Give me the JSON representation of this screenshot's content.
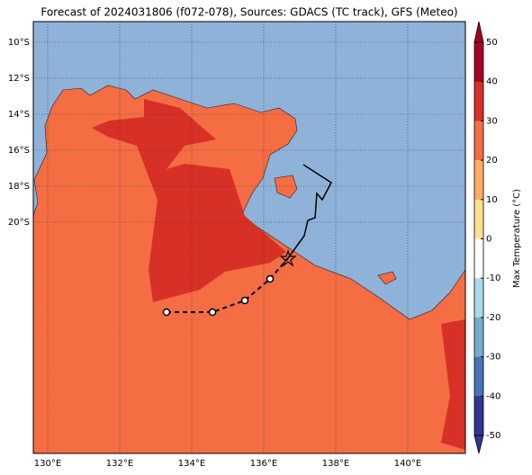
{
  "title": "Forecast of 2024031806 (f072-078), Sources: GDACS (TC track), GFS (Meteo)",
  "map": {
    "lat_labels": [
      "10°S",
      "12°S",
      "14°S",
      "16°S",
      "18°S",
      "20°S"
    ],
    "lon_labels": [
      "130°E",
      "132°E",
      "134°E",
      "136°E",
      "138°E",
      "140°E"
    ]
  },
  "colorbar": {
    "label": "Max Temperature (°C)",
    "ticks": [
      50,
      40,
      30,
      20,
      10,
      0,
      -10,
      -20,
      -30,
      -40,
      -50
    ]
  }
}
